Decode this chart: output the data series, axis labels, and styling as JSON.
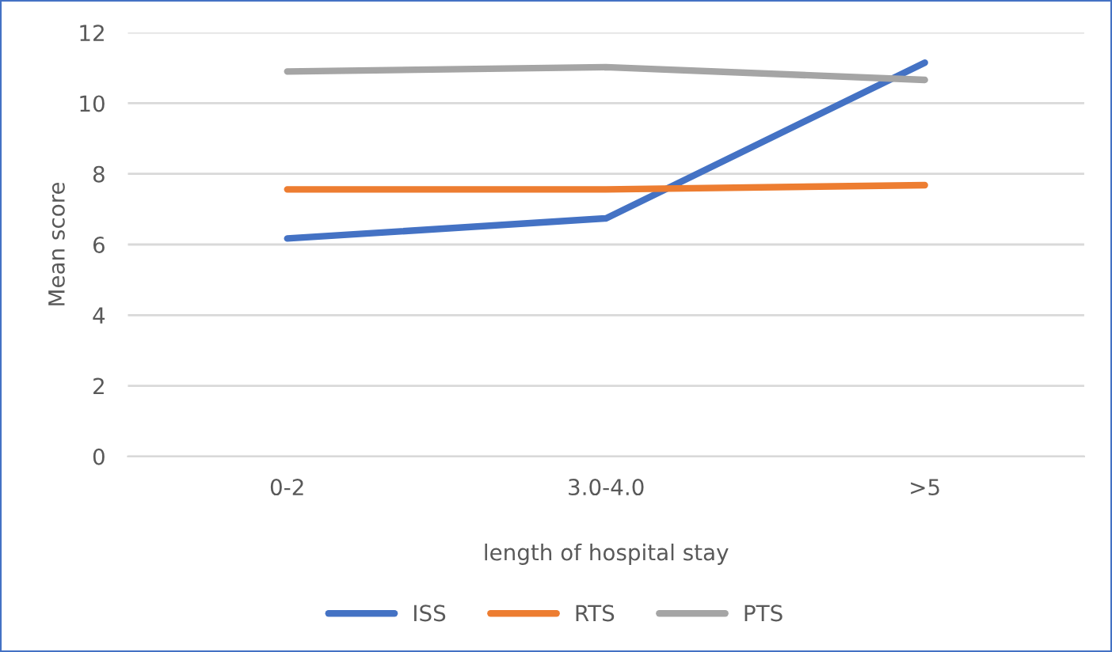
{
  "chart_data": {
    "type": "line",
    "xlabel": "length of hospital stay",
    "ylabel": "Mean score",
    "categories": [
      "0-2",
      "3.0-4.0",
      ">5"
    ],
    "series": [
      {
        "name": "ISS",
        "color": "#4472c4",
        "values": [
          6.17,
          6.74,
          11.15
        ]
      },
      {
        "name": "RTS",
        "color": "#ed7d31",
        "values": [
          7.56,
          7.56,
          7.68
        ]
      },
      {
        "name": "PTS",
        "color": "#a5a5a5",
        "values": [
          10.9,
          11.02,
          10.66
        ]
      }
    ],
    "ylim": [
      0,
      12
    ],
    "yticks": [
      0,
      2,
      4,
      6,
      8,
      10,
      12
    ],
    "grid": "y",
    "legend": "bottom",
    "marker": "none",
    "line_style": "solid"
  }
}
